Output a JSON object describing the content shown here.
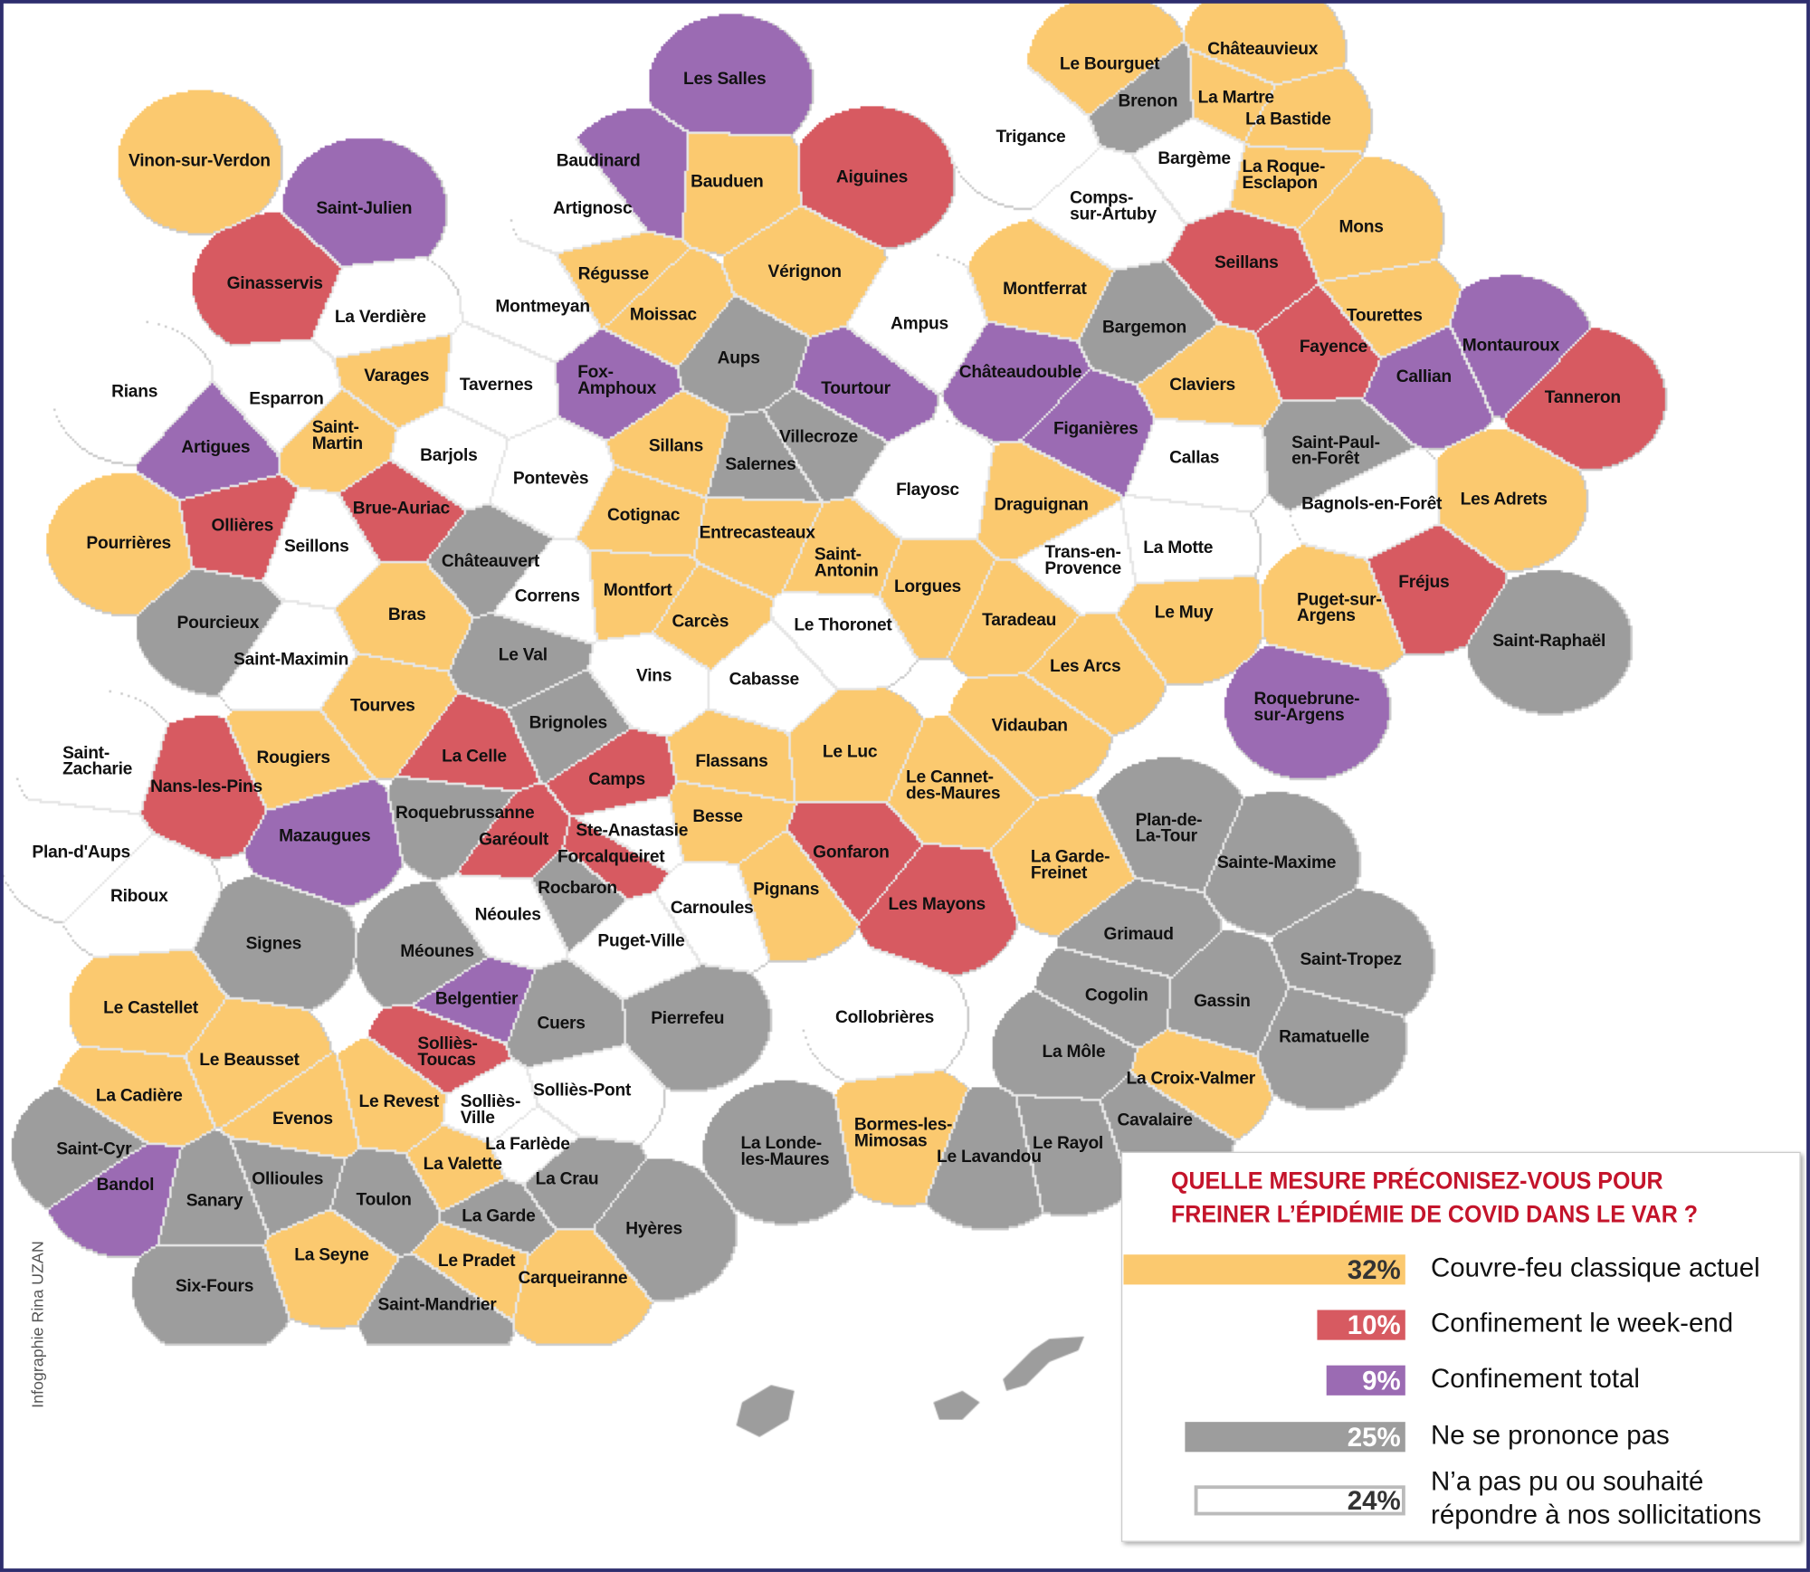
{
  "credit": "Infographie Rina UZAN",
  "legend": {
    "title": "QUELLE MESURE PRÉCONISEZ-VOUS POUR\nFREINER L’ÉPIDÉMIE DE COVID DANS LE VAR ?",
    "items": [
      {
        "id": "Y",
        "percent": "32%",
        "value": 32,
        "label": "Couvre-feu classique actuel",
        "color": "#fbc96f"
      },
      {
        "id": "R",
        "percent": "10%",
        "value": 10,
        "label": "Confinement le week-end",
        "color": "#d75a61"
      },
      {
        "id": "P",
        "percent": "9%",
        "value": 9,
        "label": "Confinement total",
        "color": "#9b6bb3"
      },
      {
        "id": "G",
        "percent": "25%",
        "value": 25,
        "label": "Ne se prononce pas",
        "color": "#9d9d9d"
      },
      {
        "id": "W",
        "percent": "24%",
        "value": 24,
        "label": "N’a pas pu ou souhaité\nrépondre à nos sollicitations",
        "color": "#ffffff"
      }
    ]
  },
  "map": {
    "towns": [
      {
        "name": "Les Salles",
        "cat": "P"
      },
      {
        "name": "Aiguines",
        "cat": "R"
      },
      {
        "name": "Baudinard",
        "cat": "P"
      },
      {
        "name": "Bauduen",
        "cat": "Y"
      },
      {
        "name": "Artignosc",
        "cat": "W"
      },
      {
        "name": "Régusse",
        "cat": "Y"
      },
      {
        "name": "Vérignon",
        "cat": "Y"
      },
      {
        "name": "Moissac",
        "cat": "Y"
      },
      {
        "name": "Aups",
        "cat": "G"
      },
      {
        "name": "Tourtour",
        "cat": "P"
      },
      {
        "name": "Fox-\nAmphoux",
        "cat": "P"
      },
      {
        "name": "Villecroze",
        "cat": "G"
      },
      {
        "name": "Salernes",
        "cat": "G"
      },
      {
        "name": "Sillans",
        "cat": "Y"
      },
      {
        "name": "Cotignac",
        "cat": "Y"
      },
      {
        "name": "Entrecasteaux",
        "cat": "Y"
      },
      {
        "name": "Saint-\nAntonin",
        "cat": "Y"
      },
      {
        "name": "Lorgues",
        "cat": "Y"
      },
      {
        "name": "Flayosc",
        "cat": "W"
      },
      {
        "name": "Ampus",
        "cat": "W"
      },
      {
        "name": "Montferrat",
        "cat": "Y"
      },
      {
        "name": "Châteaudouble",
        "cat": "P"
      },
      {
        "name": "Bargemon",
        "cat": "G"
      },
      {
        "name": "Claviers",
        "cat": "Y"
      },
      {
        "name": "Figanières",
        "cat": "P"
      },
      {
        "name": "Callas",
        "cat": "W"
      },
      {
        "name": "Draguignan",
        "cat": "Y"
      },
      {
        "name": "Trans-en-\nProvence",
        "cat": "W"
      },
      {
        "name": "La Motte",
        "cat": "W"
      },
      {
        "name": "Le Muy",
        "cat": "Y"
      },
      {
        "name": "Taradeau",
        "cat": "Y"
      },
      {
        "name": "Les Arcs",
        "cat": "Y"
      },
      {
        "name": "Vidauban",
        "cat": "Y"
      },
      {
        "name": "Le Cannet-\ndes-Maures",
        "cat": "Y"
      },
      {
        "name": "Le Luc",
        "cat": "Y"
      },
      {
        "name": "Le Thoronet",
        "cat": "W"
      },
      {
        "name": "Cabasse",
        "cat": "W"
      },
      {
        "name": "Vins",
        "cat": "W"
      },
      {
        "name": "Carcès",
        "cat": "Y"
      },
      {
        "name": "Montfort",
        "cat": "Y"
      },
      {
        "name": "Correns",
        "cat": "W"
      },
      {
        "name": "Châteauvert",
        "cat": "G"
      },
      {
        "name": "Pontevès",
        "cat": "W"
      },
      {
        "name": "Barjols",
        "cat": "W"
      },
      {
        "name": "Tavernes",
        "cat": "W"
      },
      {
        "name": "Montmeyan",
        "cat": "W"
      },
      {
        "name": "Varages",
        "cat": "Y"
      },
      {
        "name": "Saint-\nMartin",
        "cat": "Y"
      },
      {
        "name": "Esparron",
        "cat": "W"
      },
      {
        "name": "Artigues",
        "cat": "P"
      },
      {
        "name": "Rians",
        "cat": "W"
      },
      {
        "name": "La Verdière",
        "cat": "W"
      },
      {
        "name": "Ginasservis",
        "cat": "R"
      },
      {
        "name": "Saint-Julien",
        "cat": "P"
      },
      {
        "name": "Vinon-sur-Verdon",
        "cat": "Y"
      },
      {
        "name": "Brue-Auriac",
        "cat": "R"
      },
      {
        "name": "Ollières",
        "cat": "R"
      },
      {
        "name": "Seillons",
        "cat": "W"
      },
      {
        "name": "Pourrières",
        "cat": "Y"
      },
      {
        "name": "Pourcieux",
        "cat": "G"
      },
      {
        "name": "Saint-Maximin",
        "cat": "W"
      },
      {
        "name": "Bras",
        "cat": "Y"
      },
      {
        "name": "Le Val",
        "cat": "G"
      },
      {
        "name": "Tourves",
        "cat": "Y"
      },
      {
        "name": "Brignoles",
        "cat": "G"
      },
      {
        "name": "Rougiers",
        "cat": "Y"
      },
      {
        "name": "Nans-les-Pins",
        "cat": "R"
      },
      {
        "name": "Saint-\nZacharie",
        "cat": "W"
      },
      {
        "name": "Plan-d'Aups",
        "cat": "W"
      },
      {
        "name": "Riboux",
        "cat": "W"
      },
      {
        "name": "Mazaugues",
        "cat": "P"
      },
      {
        "name": "La Celle",
        "cat": "R"
      },
      {
        "name": "Roquebrussanne",
        "cat": "G"
      },
      {
        "name": "Camps",
        "cat": "R"
      },
      {
        "name": "Flassans",
        "cat": "Y"
      },
      {
        "name": "Besse",
        "cat": "Y"
      },
      {
        "name": "Garéoult",
        "cat": "R"
      },
      {
        "name": "Ste-Anastasie",
        "cat": "W"
      },
      {
        "name": "Forcalqueiret",
        "cat": "R"
      },
      {
        "name": "Rocbaron",
        "cat": "G"
      },
      {
        "name": "Néoules",
        "cat": "W"
      },
      {
        "name": "Carnoules",
        "cat": "W"
      },
      {
        "name": "Puget-Ville",
        "cat": "W"
      },
      {
        "name": "Pignans",
        "cat": "Y"
      },
      {
        "name": "Gonfaron",
        "cat": "R"
      },
      {
        "name": "Les Mayons",
        "cat": "R"
      },
      {
        "name": "La Garde-\nFreinet",
        "cat": "Y"
      },
      {
        "name": "Plan-de-\nLa-Tour",
        "cat": "G"
      },
      {
        "name": "Sainte-Maxime",
        "cat": "G"
      },
      {
        "name": "Grimaud",
        "cat": "G"
      },
      {
        "name": "Saint-Tropez",
        "cat": "G"
      },
      {
        "name": "Cogolin",
        "cat": "G"
      },
      {
        "name": "Gassin",
        "cat": "G"
      },
      {
        "name": "Ramatuelle",
        "cat": "G"
      },
      {
        "name": "La Môle",
        "cat": "G"
      },
      {
        "name": "La Croix-Valmer",
        "cat": "Y"
      },
      {
        "name": "Cavalaire",
        "cat": "G"
      },
      {
        "name": "Le Rayol",
        "cat": "G"
      },
      {
        "name": "Le Lavandou",
        "cat": "G"
      },
      {
        "name": "Bormes-les-\nMimosas",
        "cat": "Y"
      },
      {
        "name": "Collobrières",
        "cat": "W"
      },
      {
        "name": "La Londe-\nles-Maures",
        "cat": "G"
      },
      {
        "name": "Pierrefeu",
        "cat": "G"
      },
      {
        "name": "Cuers",
        "cat": "G"
      },
      {
        "name": "Hyères",
        "cat": "G"
      },
      {
        "name": "Carqueiranne",
        "cat": "Y"
      },
      {
        "name": "La Crau",
        "cat": "G"
      },
      {
        "name": "Le Pradet",
        "cat": "Y"
      },
      {
        "name": "La Garde",
        "cat": "G"
      },
      {
        "name": "La Farlède",
        "cat": "W"
      },
      {
        "name": "Solliès-Pont",
        "cat": "W"
      },
      {
        "name": "Solliès-\nVille",
        "cat": "W"
      },
      {
        "name": "Solliès-\nToucas",
        "cat": "R"
      },
      {
        "name": "Belgentier",
        "cat": "P"
      },
      {
        "name": "Méounes",
        "cat": "G"
      },
      {
        "name": "Signes",
        "cat": "G"
      },
      {
        "name": "Le Castellet",
        "cat": "Y"
      },
      {
        "name": "Le Beausset",
        "cat": "Y"
      },
      {
        "name": "La Cadière",
        "cat": "Y"
      },
      {
        "name": "Evenos",
        "cat": "Y"
      },
      {
        "name": "Le Revest",
        "cat": "Y"
      },
      {
        "name": "La Valette",
        "cat": "Y"
      },
      {
        "name": "Saint-Cyr",
        "cat": "G"
      },
      {
        "name": "Bandol",
        "cat": "P"
      },
      {
        "name": "Sanary",
        "cat": "G"
      },
      {
        "name": "Ollioules",
        "cat": "G"
      },
      {
        "name": "Toulon",
        "cat": "G"
      },
      {
        "name": "La Seyne",
        "cat": "Y"
      },
      {
        "name": "Six-Fours",
        "cat": "G"
      },
      {
        "name": "Saint-Mandrier",
        "cat": "G"
      },
      {
        "name": "Trigance",
        "cat": "W"
      },
      {
        "name": "Le Bourguet",
        "cat": "Y"
      },
      {
        "name": "Brenon",
        "cat": "G"
      },
      {
        "name": "Châteauvieux",
        "cat": "Y"
      },
      {
        "name": "La Martre",
        "cat": "Y"
      },
      {
        "name": "La Bastide",
        "cat": "Y"
      },
      {
        "name": "Bargème",
        "cat": "W"
      },
      {
        "name": "La Roque-\nEsclapon",
        "cat": "Y"
      },
      {
        "name": "Comps-\nsur-Artuby",
        "cat": "W"
      },
      {
        "name": "Mons",
        "cat": "Y"
      },
      {
        "name": "Seillans",
        "cat": "R"
      },
      {
        "name": "Tourettes",
        "cat": "Y"
      },
      {
        "name": "Fayence",
        "cat": "R"
      },
      {
        "name": "Callian",
        "cat": "P"
      },
      {
        "name": "Montauroux",
        "cat": "P"
      },
      {
        "name": "Tanneron",
        "cat": "R"
      },
      {
        "name": "Saint-Paul-\nen-Forêt",
        "cat": "G"
      },
      {
        "name": "Bagnols-en-Forêt",
        "cat": "W"
      },
      {
        "name": "Les Adrets",
        "cat": "Y"
      },
      {
        "name": "Fréjus",
        "cat": "R"
      },
      {
        "name": "Puget-sur-\nArgens",
        "cat": "Y"
      },
      {
        "name": "Saint-Raphaël",
        "cat": "G"
      },
      {
        "name": "Roquebrune-\nsur-Argens",
        "cat": "P"
      }
    ]
  }
}
